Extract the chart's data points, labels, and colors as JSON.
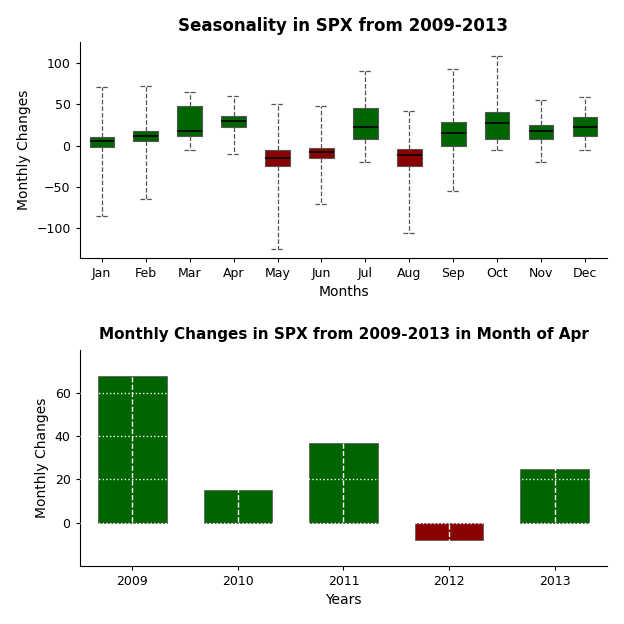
{
  "title1": "Seasonality in SPX from 2009-2013",
  "title2": "Monthly Changes in SPX from 2009-2013 in Month of Apr",
  "xlabel1": "Months",
  "ylabel1": "Monthly Changes",
  "xlabel2": "Years",
  "ylabel2": "Monthly Changes",
  "months": [
    "Jan",
    "Feb",
    "Mar",
    "Apr",
    "May",
    "Jun",
    "Jul",
    "Aug",
    "Sep",
    "Oct",
    "Nov",
    "Dec"
  ],
  "box_colors": [
    "#006400",
    "#006400",
    "#006400",
    "#006400",
    "#8B0000",
    "#8B0000",
    "#006400",
    "#8B0000",
    "#006400",
    "#006400",
    "#006400",
    "#006400"
  ],
  "boxes": {
    "Jan": {
      "q1": -2,
      "median": 5,
      "q3": 10,
      "whislo": -85,
      "whishi": 70
    },
    "Feb": {
      "q1": 5,
      "median": 12,
      "q3": 17,
      "whislo": -65,
      "whishi": 72
    },
    "Mar": {
      "q1": 12,
      "median": 18,
      "q3": 48,
      "whislo": -5,
      "whishi": 65
    },
    "Apr": {
      "q1": 22,
      "median": 30,
      "q3": 35,
      "whislo": -10,
      "whishi": 60
    },
    "May": {
      "q1": -25,
      "median": -15,
      "q3": -5,
      "whislo": -125,
      "whishi": 50
    },
    "Jun": {
      "q1": -15,
      "median": -8,
      "q3": -3,
      "whislo": -70,
      "whishi": 48
    },
    "Jul": {
      "q1": 8,
      "median": 22,
      "q3": 45,
      "whislo": -20,
      "whishi": 90
    },
    "Aug": {
      "q1": -25,
      "median": -12,
      "q3": -4,
      "whislo": -105,
      "whishi": 42
    },
    "Sep": {
      "q1": 0,
      "median": 15,
      "q3": 28,
      "whislo": -55,
      "whishi": 92
    },
    "Oct": {
      "q1": 8,
      "median": 27,
      "q3": 40,
      "whislo": -5,
      "whishi": 108
    },
    "Nov": {
      "q1": 8,
      "median": 18,
      "q3": 25,
      "whislo": -20,
      "whishi": 55
    },
    "Dec": {
      "q1": 12,
      "median": 22,
      "q3": 34,
      "whislo": -5,
      "whishi": 58
    }
  },
  "bar_years": [
    2009,
    2010,
    2011,
    2012,
    2013
  ],
  "bar_values": [
    68,
    15,
    37,
    -8,
    25
  ],
  "bar_colors2": [
    "#006400",
    "#006400",
    "#006400",
    "#8B0000",
    "#006400"
  ],
  "bg_color": "#ffffff",
  "plot_bg_color": "#ffffff"
}
